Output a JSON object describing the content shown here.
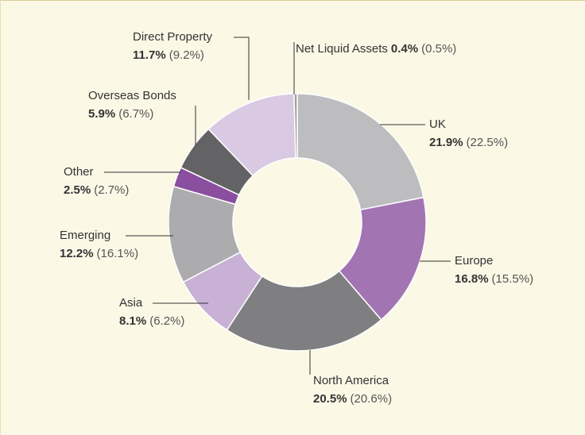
{
  "chart_data": {
    "type": "donut",
    "categories": [
      "UK",
      "Europe",
      "North America",
      "Asia",
      "Emerging",
      "Other",
      "Overseas Bonds",
      "Direct Property",
      "Net Liquid Assets"
    ],
    "values": [
      21.9,
      16.8,
      20.5,
      8.1,
      12.2,
      2.5,
      5.9,
      11.7,
      0.4
    ],
    "value_labels": [
      "21.9%",
      "16.8%",
      "20.5%",
      "8.1%",
      "12.2%",
      "2.5%",
      "5.9%",
      "11.7%",
      "0.4%"
    ],
    "prior_labels": [
      "(22.5%)",
      "(15.5%)",
      "(20.6%)",
      "(6.2%)",
      "(16.1%)",
      "(2.7%)",
      "(6.7%)",
      "(9.2%)",
      "(0.5%)"
    ],
    "colors": [
      "#bdbdbf",
      "#a275b2",
      "#7f7f82",
      "#c9b0d5",
      "#acacae",
      "#8a4f9f",
      "#636366",
      "#dac9e3",
      "#a0a0a2"
    ]
  }
}
